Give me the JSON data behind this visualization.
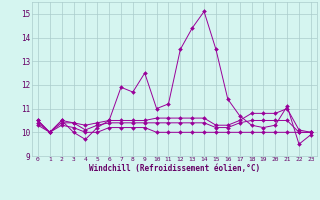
{
  "xlabel": "Windchill (Refroidissement éolien,°C)",
  "x": [
    0,
    1,
    2,
    3,
    4,
    5,
    6,
    7,
    8,
    9,
    10,
    11,
    12,
    13,
    14,
    15,
    16,
    17,
    18,
    19,
    20,
    21,
    22,
    23
  ],
  "y_main": [
    10.5,
    10.0,
    10.5,
    10.0,
    9.7,
    10.2,
    10.5,
    11.9,
    11.7,
    12.5,
    11.0,
    11.2,
    13.5,
    14.4,
    15.1,
    13.5,
    11.4,
    10.7,
    10.3,
    10.2,
    10.3,
    11.1,
    9.5,
    9.9
  ],
  "y_flat1": [
    10.5,
    10.0,
    10.5,
    10.4,
    10.3,
    10.4,
    10.5,
    10.5,
    10.5,
    10.5,
    10.6,
    10.6,
    10.6,
    10.6,
    10.6,
    10.3,
    10.3,
    10.5,
    10.8,
    10.8,
    10.8,
    11.0,
    10.1,
    10.0
  ],
  "y_flat2": [
    10.4,
    10.0,
    10.4,
    10.4,
    10.1,
    10.3,
    10.4,
    10.4,
    10.4,
    10.4,
    10.4,
    10.4,
    10.4,
    10.4,
    10.4,
    10.2,
    10.2,
    10.4,
    10.5,
    10.5,
    10.5,
    10.5,
    10.0,
    10.0
  ],
  "y_flat3": [
    10.3,
    10.0,
    10.3,
    10.2,
    10.0,
    10.0,
    10.2,
    10.2,
    10.2,
    10.2,
    10.0,
    10.0,
    10.0,
    10.0,
    10.0,
    10.0,
    10.0,
    10.0,
    10.0,
    10.0,
    10.0,
    10.0,
    10.0,
    10.0
  ],
  "line_color": "#990099",
  "bg_color": "#d5f5f0",
  "grid_color": "#aadddd",
  "ylim": [
    9.0,
    15.5
  ],
  "xlim": [
    -0.5,
    23.5
  ]
}
